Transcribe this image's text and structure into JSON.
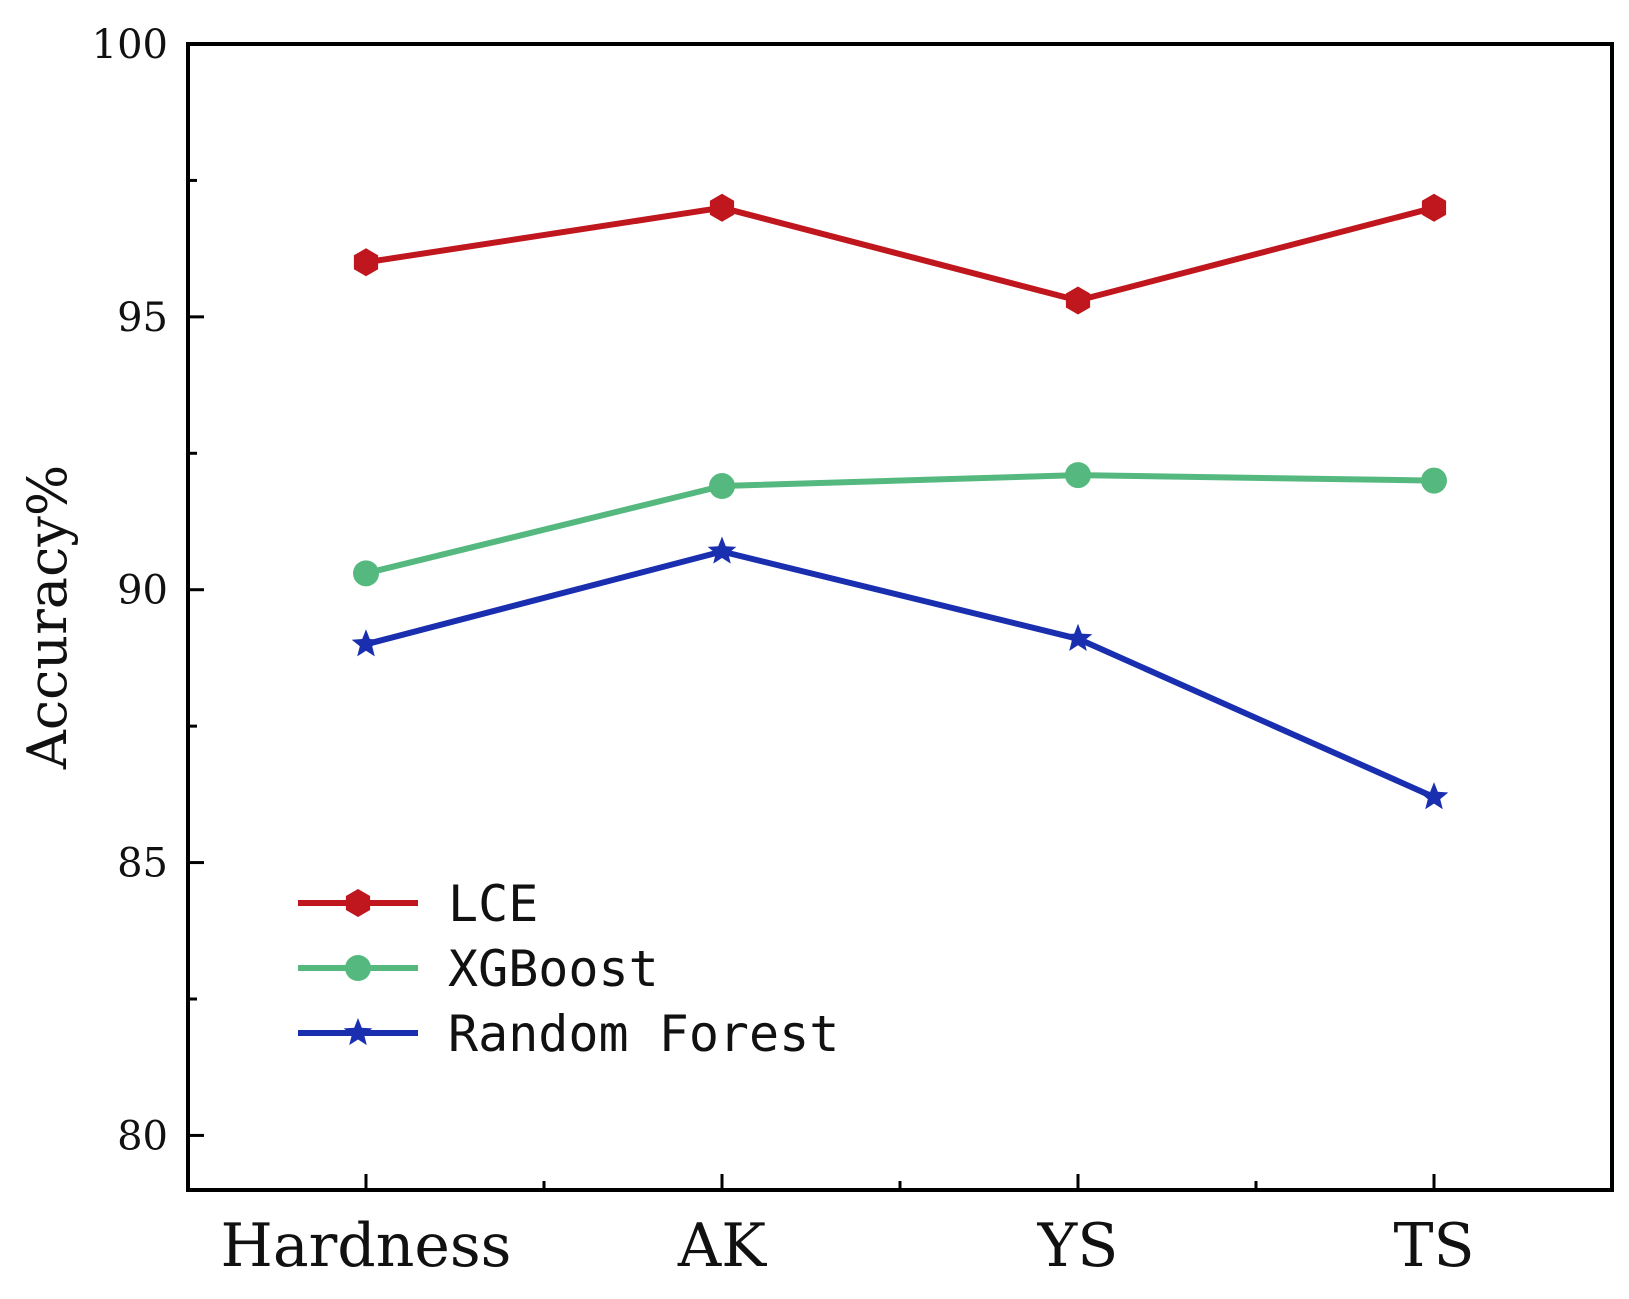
{
  "chart_data": {
    "type": "line",
    "title": "",
    "xlabel": "",
    "ylabel": "Accuracy%",
    "categories": [
      "Hardness",
      "AK",
      "YS",
      "TS"
    ],
    "ylim": [
      79,
      100
    ],
    "yticks": [
      80,
      85,
      90,
      95,
      100
    ],
    "yticks_minor": [
      82.5,
      87.5,
      92.5,
      97.5
    ],
    "grid": false,
    "legend_position": "bottom-left",
    "series": [
      {
        "name": "LCE",
        "values": [
          96.0,
          97.0,
          95.3,
          97.0
        ],
        "color": "#c0161d",
        "marker": "hexagon"
      },
      {
        "name": "XGBoost",
        "values": [
          90.3,
          91.9,
          92.1,
          92.0
        ],
        "color": "#55b97f",
        "marker": "circle"
      },
      {
        "name": "Random Forest",
        "values": [
          89.0,
          90.7,
          89.1,
          86.2
        ],
        "color": "#1a2fb0",
        "marker": "star"
      }
    ]
  }
}
